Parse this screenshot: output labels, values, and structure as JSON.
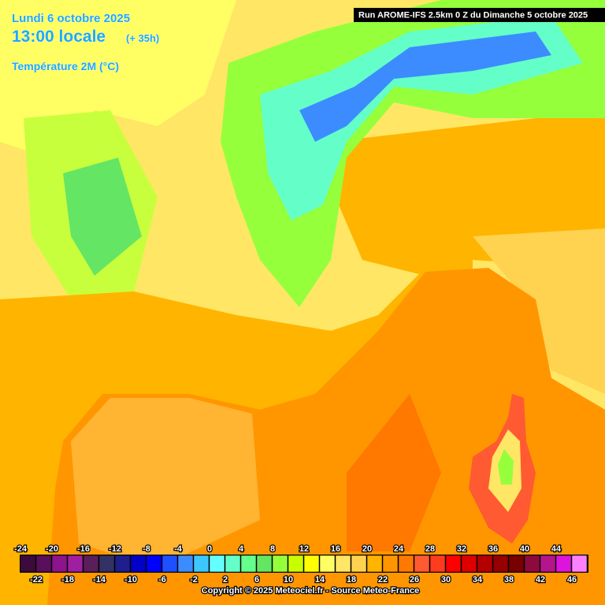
{
  "header": {
    "date": "Lundi 6 octobre 2025",
    "time": "13:00 locale",
    "lead": "(+ 35h)",
    "parameter": "Température 2M (°C)",
    "run": "Run AROME-IFS 2.5km 0 Z du Dimanche 5 octobre 2025"
  },
  "legend": {
    "values": [
      -24,
      -22,
      -20,
      -18,
      -16,
      -14,
      -12,
      -10,
      -8,
      -6,
      -4,
      -2,
      0,
      2,
      4,
      6,
      8,
      10,
      12,
      14,
      16,
      18,
      20,
      22,
      24,
      26,
      28,
      30,
      32,
      34,
      36,
      38,
      40,
      42,
      44,
      46
    ],
    "colors": [
      "#3c0a3c",
      "#5a0f5a",
      "#8c148c",
      "#a01ea0",
      "#5a1e5a",
      "#323264",
      "#1e1e8c",
      "#0000c8",
      "#0000ff",
      "#1e50ff",
      "#3c8cff",
      "#3cc8ff",
      "#64ffff",
      "#64ffc8",
      "#64ff8c",
      "#64e664",
      "#96ff3c",
      "#c8ff00",
      "#ffff00",
      "#ffff64",
      "#ffe664",
      "#ffd250",
      "#ffb400",
      "#ff9600",
      "#ff7800",
      "#ff5a32",
      "#ff3c1e",
      "#ff0000",
      "#dc0000",
      "#b40000",
      "#960000",
      "#780000",
      "#8c0a3c",
      "#b4148c",
      "#dc14dc",
      "#ff80ff"
    ]
  },
  "footer": {
    "copyright": "Copyright © 2025 Meteociel.fr - Source Meteo-France"
  }
}
